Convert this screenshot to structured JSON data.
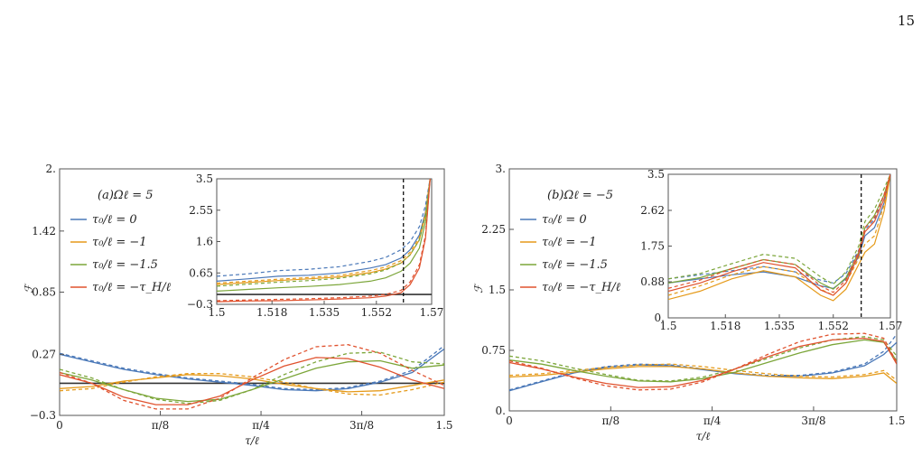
{
  "page_number": "15",
  "colors": {
    "blue": "#4a78b8",
    "orange": "#e59a1a",
    "green": "#7ca63a",
    "red": "#e0522e",
    "frame": "#555555",
    "ref": "#333333"
  },
  "chart_data": [
    {
      "type": "line",
      "title": "(a)Ωℓ = 5",
      "xlabel": "τ/ℓ",
      "ylabel": "ℱ",
      "xlim": [
        0,
        1.5
      ],
      "ylim": [
        -0.3,
        2.0
      ],
      "xticks": [
        0,
        0.3927,
        0.7854,
        1.1781,
        1.5
      ],
      "xtick_labels": [
        "0",
        "π/8",
        "π/4",
        "3π/8",
        "1.5"
      ],
      "yticks": [
        -0.3,
        0.27,
        0.85,
        1.42,
        2.0
      ],
      "ytick_labels": [
        "−0.3",
        "0.27",
        "0.85",
        "1.42",
        "2."
      ],
      "reference_line": 0.0,
      "legend": [
        "τ₀/ℓ = 0",
        "τ₀/ℓ = −1",
        "τ₀/ℓ = −1.5",
        "τ₀/ℓ = −τ_H/ℓ"
      ],
      "x": [
        0,
        0.125,
        0.25,
        0.375,
        0.5,
        0.625,
        0.75,
        0.875,
        1.0,
        1.125,
        1.25,
        1.375,
        1.5
      ],
      "series": [
        {
          "name": "τ₀/ℓ = 0",
          "color": "blue",
          "style": "solid",
          "values": [
            0.27,
            0.2,
            0.13,
            0.08,
            0.04,
            0.01,
            -0.02,
            -0.06,
            -0.07,
            -0.05,
            0.01,
            0.1,
            0.32
          ]
        },
        {
          "name": "τ₀/ℓ = 0",
          "color": "blue",
          "style": "dashed",
          "values": [
            0.28,
            0.21,
            0.14,
            0.09,
            0.05,
            0.02,
            -0.01,
            -0.05,
            -0.06,
            -0.04,
            0.02,
            0.12,
            0.35
          ]
        },
        {
          "name": "τ₀/ℓ = −1",
          "color": "orange",
          "style": "solid",
          "values": [
            -0.05,
            -0.03,
            0.02,
            0.05,
            0.08,
            0.07,
            0.04,
            -0.01,
            -0.05,
            -0.08,
            -0.07,
            -0.02,
            0.03
          ]
        },
        {
          "name": "τ₀/ℓ = −1",
          "color": "orange",
          "style": "dashed",
          "values": [
            -0.07,
            -0.05,
            0.01,
            0.06,
            0.09,
            0.09,
            0.06,
            0.01,
            -0.05,
            -0.1,
            -0.11,
            -0.06,
            0.01
          ]
        },
        {
          "name": "τ₀/ℓ = −1.5",
          "color": "green",
          "style": "solid",
          "values": [
            0.1,
            0.03,
            -0.06,
            -0.14,
            -0.17,
            -0.15,
            -0.06,
            0.04,
            0.14,
            0.2,
            0.21,
            0.14,
            0.17
          ]
        },
        {
          "name": "τ₀/ℓ = −1.5",
          "color": "green",
          "style": "dashed",
          "values": [
            0.13,
            0.05,
            -0.06,
            -0.15,
            -0.19,
            -0.16,
            -0.06,
            0.08,
            0.2,
            0.28,
            0.29,
            0.2,
            0.18
          ]
        },
        {
          "name": "τ₀/ℓ = −τ_H/ℓ",
          "color": "red",
          "style": "solid",
          "values": [
            0.08,
            0.0,
            -0.13,
            -0.2,
            -0.2,
            -0.12,
            0.03,
            0.16,
            0.24,
            0.23,
            0.15,
            0.03,
            -0.05
          ]
        },
        {
          "name": "τ₀/ℓ = −τ_H/ℓ",
          "color": "red",
          "style": "dashed",
          "values": [
            0.1,
            0.0,
            -0.16,
            -0.24,
            -0.24,
            -0.14,
            0.05,
            0.22,
            0.34,
            0.36,
            0.28,
            0.12,
            -0.02
          ]
        }
      ],
      "inset": {
        "xlim": [
          1.5,
          1.57
        ],
        "ylim": [
          -0.3,
          3.5
        ],
        "xticks": [
          1.5,
          1.518,
          1.535,
          1.552,
          1.57
        ],
        "xtick_labels": [
          "1.5",
          "1.518",
          "1.535",
          "1.552",
          "1.57"
        ],
        "yticks": [
          -0.3,
          0.65,
          1.6,
          2.55,
          3.5
        ],
        "ytick_labels": [
          "−0.3",
          "0.65",
          "1.6",
          "2.55",
          "3.5"
        ],
        "vline": 1.5608,
        "reference_line": 0.0,
        "x": [
          1.5,
          1.51,
          1.52,
          1.53,
          1.54,
          1.55,
          1.555,
          1.56,
          1.563,
          1.566,
          1.568,
          1.5695
        ],
        "series": [
          {
            "color": "blue",
            "style": "solid",
            "values": [
              0.4,
              0.47,
              0.55,
              0.58,
              0.65,
              0.8,
              0.9,
              1.1,
              1.35,
              1.8,
              2.5,
              3.5
            ]
          },
          {
            "color": "blue",
            "style": "dashed",
            "values": [
              0.55,
              0.62,
              0.72,
              0.76,
              0.84,
              1.0,
              1.12,
              1.35,
              1.6,
              2.05,
              2.7,
              3.5
            ]
          },
          {
            "color": "orange",
            "style": "solid",
            "values": [
              0.3,
              0.36,
              0.42,
              0.47,
              0.53,
              0.66,
              0.77,
              0.95,
              1.2,
              1.65,
              2.4,
              3.5
            ]
          },
          {
            "color": "orange",
            "style": "dashed",
            "values": [
              0.34,
              0.4,
              0.46,
              0.51,
              0.58,
              0.72,
              0.83,
              1.02,
              1.28,
              1.72,
              2.45,
              3.5
            ]
          },
          {
            "color": "green",
            "style": "solid",
            "values": [
              0.1,
              0.15,
              0.2,
              0.24,
              0.3,
              0.4,
              0.5,
              0.7,
              0.95,
              1.4,
              2.2,
              3.5
            ]
          },
          {
            "color": "green",
            "style": "dashed",
            "values": [
              0.25,
              0.31,
              0.37,
              0.42,
              0.49,
              0.62,
              0.74,
              0.95,
              1.2,
              1.65,
              2.4,
              3.5
            ]
          },
          {
            "color": "red",
            "style": "solid",
            "values": [
              -0.22,
              -0.2,
              -0.19,
              -0.17,
              -0.14,
              -0.1,
              -0.05,
              0.05,
              0.3,
              0.8,
              1.7,
              3.5
            ]
          },
          {
            "color": "red",
            "style": "dashed",
            "values": [
              -0.19,
              -0.17,
              -0.15,
              -0.13,
              -0.1,
              -0.05,
              0.0,
              0.12,
              0.38,
              0.9,
              1.8,
              3.5
            ]
          }
        ]
      }
    },
    {
      "type": "line",
      "title": "(b)Ωℓ = −5",
      "xlabel": "τ/ℓ",
      "ylabel": "ℱ",
      "xlim": [
        0,
        1.5
      ],
      "ylim": [
        0.0,
        3.0
      ],
      "xticks": [
        0,
        0.3927,
        0.7854,
        1.1781,
        1.5
      ],
      "xtick_labels": [
        "0",
        "π/8",
        "π/4",
        "3π/8",
        "1.5"
      ],
      "yticks": [
        0.0,
        0.75,
        1.5,
        2.25,
        3.0
      ],
      "ytick_labels": [
        "0.",
        "0.75",
        "1.5",
        "2.25",
        "3."
      ],
      "legend": [
        "τ₀/ℓ = 0",
        "τ₀/ℓ = −1",
        "τ₀/ℓ = −1.5",
        "τ₀/ℓ = −τ_H/ℓ"
      ],
      "x": [
        0,
        0.125,
        0.25,
        0.375,
        0.5,
        0.625,
        0.75,
        0.875,
        1.0,
        1.125,
        1.25,
        1.375,
        1.45,
        1.5
      ],
      "series": [
        {
          "name": "τ₀/ℓ = 0",
          "color": "blue",
          "style": "solid",
          "values": [
            0.25,
            0.36,
            0.47,
            0.54,
            0.57,
            0.56,
            0.51,
            0.46,
            0.43,
            0.43,
            0.47,
            0.56,
            0.7,
            0.85
          ]
        },
        {
          "name": "τ₀/ℓ = 0",
          "color": "blue",
          "style": "dashed",
          "values": [
            0.26,
            0.37,
            0.48,
            0.55,
            0.58,
            0.57,
            0.52,
            0.47,
            0.44,
            0.44,
            0.48,
            0.58,
            0.74,
            0.95
          ]
        },
        {
          "name": "τ₀/ℓ = −1",
          "color": "orange",
          "style": "solid",
          "values": [
            0.42,
            0.44,
            0.48,
            0.52,
            0.55,
            0.55,
            0.52,
            0.47,
            0.43,
            0.41,
            0.4,
            0.43,
            0.47,
            0.34
          ]
        },
        {
          "name": "τ₀/ℓ = −1",
          "color": "orange",
          "style": "dashed",
          "values": [
            0.44,
            0.46,
            0.5,
            0.54,
            0.57,
            0.58,
            0.55,
            0.5,
            0.46,
            0.43,
            0.42,
            0.45,
            0.5,
            0.38
          ]
        },
        {
          "name": "τ₀/ℓ = −1.5",
          "color": "green",
          "style": "solid",
          "values": [
            0.63,
            0.58,
            0.5,
            0.43,
            0.37,
            0.36,
            0.4,
            0.48,
            0.6,
            0.72,
            0.82,
            0.88,
            0.85,
            0.62
          ]
        },
        {
          "name": "τ₀/ℓ = −1.5",
          "color": "green",
          "style": "dashed",
          "values": [
            0.68,
            0.62,
            0.53,
            0.45,
            0.38,
            0.37,
            0.42,
            0.52,
            0.65,
            0.78,
            0.88,
            0.92,
            0.88,
            0.68
          ]
        },
        {
          "name": "τ₀/ℓ = −τ_H/ℓ",
          "color": "red",
          "style": "solid",
          "values": [
            0.6,
            0.52,
            0.42,
            0.34,
            0.29,
            0.3,
            0.38,
            0.52,
            0.67,
            0.8,
            0.88,
            0.9,
            0.86,
            0.58
          ]
        },
        {
          "name": "τ₀/ℓ = −τ_H/ℓ",
          "color": "red",
          "style": "dashed",
          "values": [
            0.62,
            0.53,
            0.41,
            0.31,
            0.26,
            0.27,
            0.36,
            0.52,
            0.7,
            0.86,
            0.95,
            0.96,
            0.9,
            0.6
          ]
        }
      ],
      "inset": {
        "xlim": [
          1.5,
          1.57
        ],
        "ylim": [
          0.0,
          3.5
        ],
        "xticks": [
          1.5,
          1.518,
          1.535,
          1.552,
          1.57
        ],
        "xtick_labels": [
          "1.5",
          "1.518",
          "1.535",
          "1.552",
          "1.57"
        ],
        "yticks": [
          0.0,
          0.88,
          1.75,
          2.62,
          3.5
        ],
        "ytick_labels": [
          "0.",
          "0.88",
          "1.75",
          "2.62",
          "3.5"
        ],
        "vline": 1.5608,
        "x": [
          1.5,
          1.51,
          1.52,
          1.53,
          1.54,
          1.548,
          1.552,
          1.556,
          1.56,
          1.562,
          1.565,
          1.568,
          1.57
        ],
        "series": [
          {
            "color": "blue",
            "style": "solid",
            "values": [
              0.85,
              0.95,
              1.05,
              1.12,
              1.0,
              0.78,
              0.72,
              0.95,
              1.5,
              2.0,
              2.2,
              2.8,
              3.5
            ]
          },
          {
            "color": "blue",
            "style": "dashed",
            "values": [
              0.95,
              1.05,
              1.15,
              1.25,
              1.12,
              0.92,
              0.85,
              1.08,
              1.65,
              2.15,
              2.4,
              3.0,
              3.5
            ]
          },
          {
            "color": "orange",
            "style": "solid",
            "values": [
              0.45,
              0.65,
              0.95,
              1.15,
              1.0,
              0.55,
              0.42,
              0.7,
              1.3,
              1.6,
              1.8,
              2.6,
              3.5
            ]
          },
          {
            "color": "orange",
            "style": "dashed",
            "values": [
              0.55,
              0.78,
              1.05,
              1.25,
              1.12,
              0.7,
              0.55,
              0.85,
              1.45,
              1.8,
              2.0,
              2.75,
              3.5
            ]
          },
          {
            "color": "green",
            "style": "solid",
            "values": [
              0.85,
              0.98,
              1.2,
              1.42,
              1.3,
              0.85,
              0.7,
              0.98,
              1.6,
              2.2,
              2.5,
              3.0,
              3.5
            ]
          },
          {
            "color": "green",
            "style": "dashed",
            "values": [
              0.95,
              1.08,
              1.32,
              1.55,
              1.45,
              1.0,
              0.82,
              1.12,
              1.75,
              2.35,
              2.65,
              3.15,
              3.5
            ]
          },
          {
            "color": "red",
            "style": "solid",
            "values": [
              0.65,
              0.85,
              1.12,
              1.35,
              1.22,
              0.68,
              0.55,
              0.85,
              1.55,
              2.1,
              2.35,
              2.9,
              3.5
            ]
          },
          {
            "color": "red",
            "style": "dashed",
            "values": [
              0.72,
              0.92,
              1.2,
              1.42,
              1.3,
              0.78,
              0.62,
              0.92,
              1.62,
              2.2,
              2.45,
              3.0,
              3.5
            ]
          }
        ]
      }
    }
  ]
}
